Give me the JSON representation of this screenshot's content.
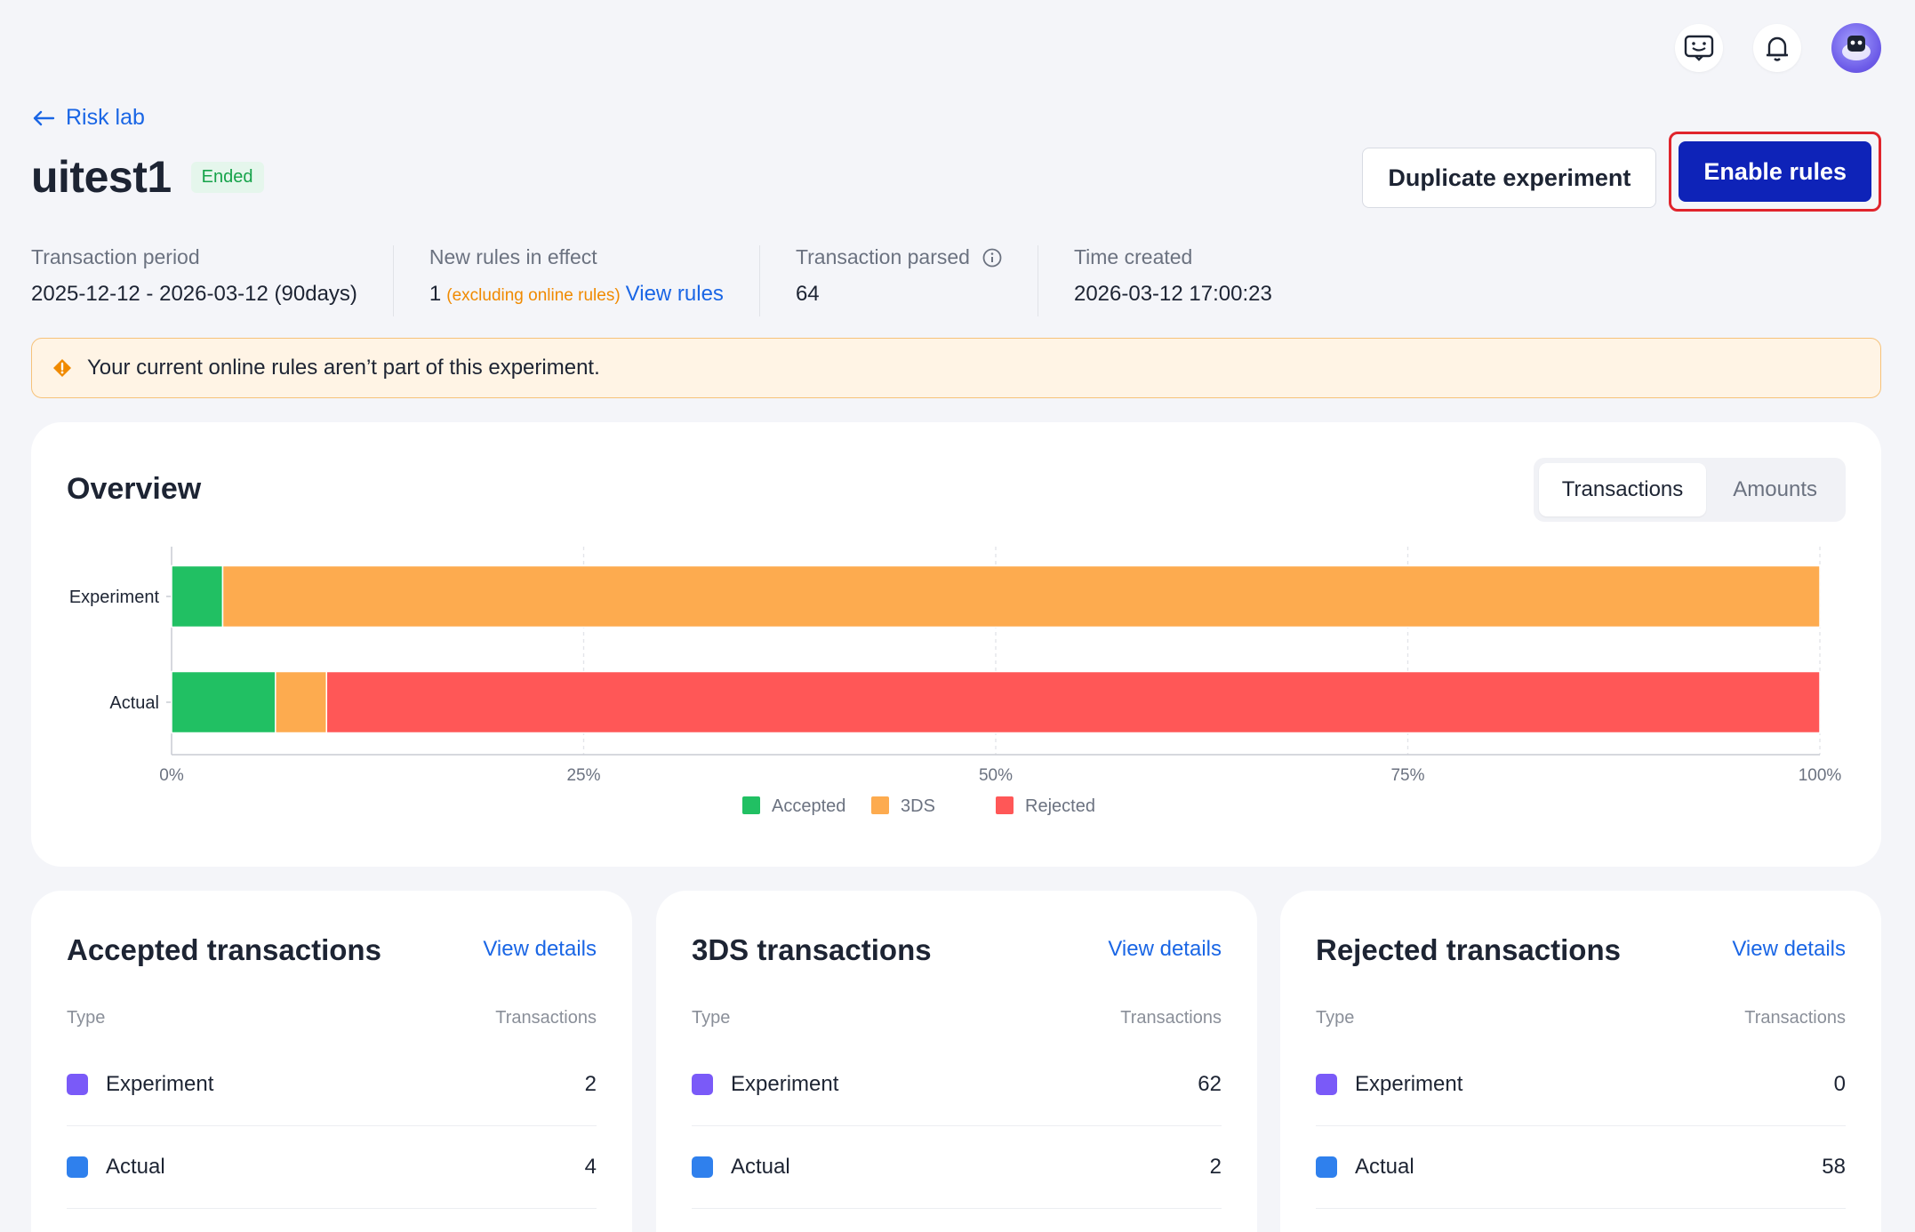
{
  "header": {
    "icons": [
      "feedback-icon",
      "bell-icon",
      "avatar"
    ]
  },
  "breadcrumb": {
    "back_label": "Risk lab"
  },
  "page": {
    "title": "uitest1",
    "status": "Ended"
  },
  "actions": {
    "duplicate_label": "Duplicate experiment",
    "enable_label": "Enable rules"
  },
  "info": {
    "period_label": "Transaction period",
    "period_value": "2025-12-12 - 2026-03-12 (90days)",
    "rules_label": "New rules in effect",
    "rules_count": "1",
    "rules_note": "(excluding online rules)",
    "rules_link": "View rules",
    "parsed_label": "Transaction parsed",
    "parsed_value": "64",
    "created_label": "Time created",
    "created_value": "2026-03-12 17:00:23"
  },
  "alert": {
    "text": "Your current online rules aren’t part of this experiment."
  },
  "overview": {
    "title": "Overview",
    "tabs": [
      {
        "label": "Transactions",
        "active": true
      },
      {
        "label": "Amounts",
        "active": false
      }
    ]
  },
  "chart_data": {
    "type": "bar",
    "orientation": "horizontal",
    "stacked": true,
    "categories": [
      "Experiment",
      "Actual"
    ],
    "series": [
      {
        "name": "Accepted",
        "color": "#21c063",
        "values": [
          3.1,
          6.3
        ]
      },
      {
        "name": "3DS",
        "color": "#fdab4f",
        "values": [
          96.9,
          3.1
        ]
      },
      {
        "name": "Rejected",
        "color": "#ff5757",
        "values": [
          0,
          90.6
        ]
      }
    ],
    "xlim": [
      0,
      100
    ],
    "x_ticks": [
      "0%",
      "25%",
      "50%",
      "75%",
      "100%"
    ],
    "legend_position": "bottom",
    "grid": true
  },
  "stat_cards": [
    {
      "title": "Accepted transactions",
      "link": "View details",
      "col_type": "Type",
      "col_count": "Transactions",
      "rows": [
        {
          "label": "Experiment",
          "value": "2",
          "color": "#7a5af8"
        },
        {
          "label": "Actual",
          "value": "4",
          "color": "#2f80ed"
        }
      ]
    },
    {
      "title": "3DS transactions",
      "link": "View details",
      "col_type": "Type",
      "col_count": "Transactions",
      "rows": [
        {
          "label": "Experiment",
          "value": "62",
          "color": "#7a5af8"
        },
        {
          "label": "Actual",
          "value": "2",
          "color": "#2f80ed"
        }
      ]
    },
    {
      "title": "Rejected transactions",
      "link": "View details",
      "col_type": "Type",
      "col_count": "Transactions",
      "rows": [
        {
          "label": "Experiment",
          "value": "0",
          "color": "#7a5af8"
        },
        {
          "label": "Actual",
          "value": "58",
          "color": "#2f80ed"
        }
      ]
    }
  ]
}
